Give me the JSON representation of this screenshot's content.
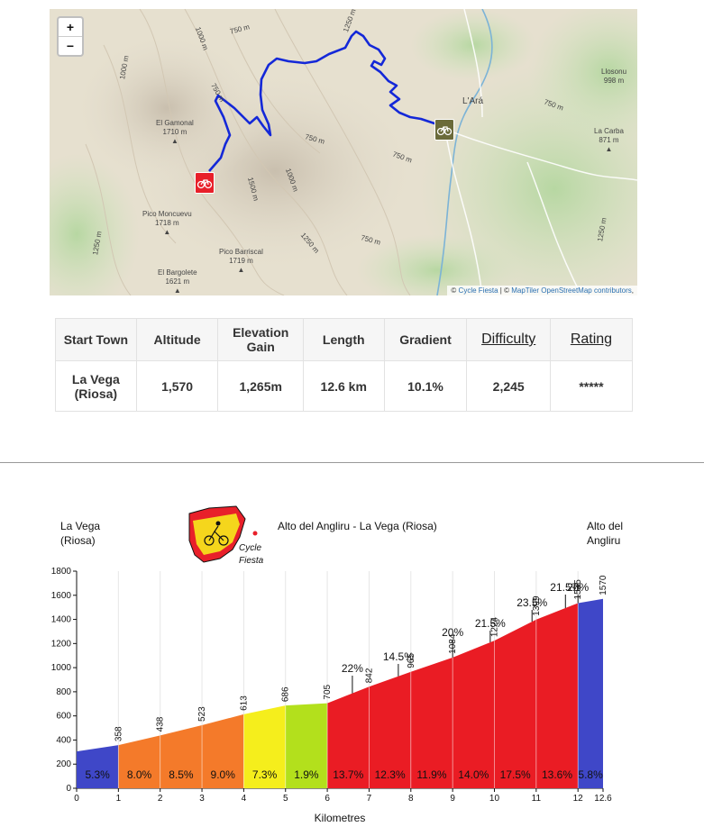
{
  "map": {
    "zoom_in": "+",
    "zoom_out": "−",
    "attribution": {
      "prefix": "©",
      "link1": "Cycle Fiesta",
      "sep": " | © ",
      "link2": "MapTiler",
      "link3": "OpenStreetMap contributors",
      "suffix": ","
    },
    "places": [
      {
        "name": "Llosonu",
        "alt": "998 m"
      },
      {
        "name": "L'Ará",
        "alt": ""
      },
      {
        "name": "La Carba",
        "alt": "871 m"
      },
      {
        "name": "El Gamonal",
        "alt": "1710 m"
      },
      {
        "name": "Pico Moncuevu",
        "alt": "1718 m"
      },
      {
        "name": "Pico Barriscal",
        "alt": "1719 m"
      },
      {
        "name": "El Bargolete",
        "alt": "1621 m"
      }
    ],
    "contours": [
      "750 m",
      "1000 m",
      "750 m",
      "1250 m",
      "1000 m",
      "1250 m",
      "750 m",
      "750 m",
      "1250 m",
      "750 m",
      "1500 m",
      "1000 m",
      "1250 m",
      "750 m"
    ],
    "route_color": "#1428d8",
    "start_marker_color": "#e8202a",
    "finish_marker_color": "#6b6b3a"
  },
  "table": {
    "headers": [
      "Start Town",
      "Altitude",
      "Elevation Gain",
      "Length",
      "Gradient",
      "Difficulty",
      "Rating"
    ],
    "row": [
      "La Vega (Riosa)",
      "1,570",
      "1,265m",
      "12.6 km",
      "10.1%",
      "2,245",
      "*****"
    ]
  },
  "chart_data": {
    "type": "area",
    "title": "Alto del Angliru - La Vega (Riosa)",
    "start_label": "La Vega (Riosa)",
    "end_label": "Alto del Angliru",
    "logo_text": "Cycle Fiesta",
    "xlabel": "Kilometres",
    "ylabel": "",
    "xlim": [
      0,
      12.6
    ],
    "ylim": [
      0,
      1800
    ],
    "x_ticks": [
      "0",
      "1",
      "2",
      "3",
      "4",
      "5",
      "6",
      "7",
      "8",
      "9",
      "10",
      "11",
      "12",
      "12.6"
    ],
    "y_ticks": [
      "0",
      "200",
      "400",
      "600",
      "800",
      "1000",
      "1200",
      "1400",
      "1600",
      "1800"
    ],
    "points": [
      {
        "km": 0,
        "alt": 305,
        "label": ""
      },
      {
        "km": 1,
        "alt": 358,
        "label": "358"
      },
      {
        "km": 2,
        "alt": 438,
        "label": "438"
      },
      {
        "km": 3,
        "alt": 523,
        "label": "523"
      },
      {
        "km": 4,
        "alt": 613,
        "label": "613"
      },
      {
        "km": 5,
        "alt": 686,
        "label": "686"
      },
      {
        "km": 6,
        "alt": 705,
        "label": "705"
      },
      {
        "km": 7,
        "alt": 842,
        "label": "842"
      },
      {
        "km": 8,
        "alt": 965,
        "label": "965"
      },
      {
        "km": 9,
        "alt": 1084,
        "label": "1084"
      },
      {
        "km": 10,
        "alt": 1224,
        "label": "1224"
      },
      {
        "km": 11,
        "alt": 1399,
        "label": "1399"
      },
      {
        "km": 12,
        "alt": 1535,
        "label": "1535"
      },
      {
        "km": 12.6,
        "alt": 1570,
        "label": "1570"
      }
    ],
    "segments": [
      {
        "gradient": "5.3%",
        "color": "#3f47c8"
      },
      {
        "gradient": "8.0%",
        "color": "#f47a2a"
      },
      {
        "gradient": "8.5%",
        "color": "#f47a2a"
      },
      {
        "gradient": "9.0%",
        "color": "#f47a2a"
      },
      {
        "gradient": "7.3%",
        "color": "#f5ee1c"
      },
      {
        "gradient": "1.9%",
        "color": "#b3e01c"
      },
      {
        "gradient": "13.7%",
        "color": "#ea1c24"
      },
      {
        "gradient": "12.3%",
        "color": "#ea1c24"
      },
      {
        "gradient": "11.9%",
        "color": "#ea1c24"
      },
      {
        "gradient": "14.0%",
        "color": "#ea1c24"
      },
      {
        "gradient": "17.5%",
        "color": "#ea1c24"
      },
      {
        "gradient": "13.6%",
        "color": "#ea1c24"
      },
      {
        "gradient": "5.8%",
        "color": "#3f47c8"
      }
    ],
    "annotations": [
      {
        "km": 6.6,
        "text": "22%"
      },
      {
        "km": 7.7,
        "text": "14.5%"
      },
      {
        "km": 9.0,
        "text": "20%"
      },
      {
        "km": 9.9,
        "text": "21.5%"
      },
      {
        "km": 10.9,
        "text": "23.5%"
      },
      {
        "km": 11.7,
        "text": "21.5%"
      },
      {
        "km": 12.0,
        "text": "20%"
      }
    ]
  }
}
